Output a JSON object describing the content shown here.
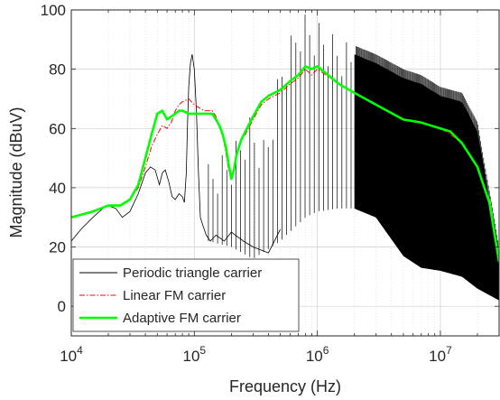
{
  "chart_data": {
    "type": "line",
    "title": "",
    "xlabel": "Frequency (Hz)",
    "ylabel": "Magnitude (dBuV)",
    "xscale": "log",
    "xlim": [
      10000,
      30000000
    ],
    "ylim": [
      -10,
      100
    ],
    "grid": true,
    "x_ticks": [
      {
        "value": 10000,
        "base": "10",
        "exp": "4"
      },
      {
        "value": 100000,
        "base": "10",
        "exp": "5"
      },
      {
        "value": 1000000,
        "base": "10",
        "exp": "6"
      },
      {
        "value": 10000000,
        "base": "10",
        "exp": "7"
      }
    ],
    "y_ticks": [
      0,
      20,
      40,
      60,
      80,
      100
    ],
    "legend_position": "bottom-left",
    "series": [
      {
        "name": "Periodic triangle carrier",
        "color": "#000000",
        "style": "solid",
        "x": [
          10000,
          12000,
          15000,
          18000,
          20000,
          23000,
          26000,
          30000,
          35000,
          40000,
          44000,
          48000,
          52000,
          55000,
          58000,
          62000,
          66000,
          70000,
          75000,
          80000,
          83000,
          86000,
          88000,
          90000,
          93000,
          96000,
          100000,
          104000,
          108000,
          112000,
          118000,
          125000,
          135000,
          150000,
          175000,
          200000,
          250000,
          300000,
          400000,
          500000
        ],
        "y": [
          22,
          26,
          30,
          33,
          34,
          33,
          30,
          32,
          38,
          45,
          47,
          46,
          41,
          45,
          46,
          42,
          37,
          36,
          38,
          37,
          35,
          45,
          62,
          74,
          82,
          85,
          80,
          66,
          45,
          30,
          27,
          24,
          22,
          24,
          22,
          25,
          22,
          20,
          18,
          26
        ],
        "spur_start_hz": 130000,
        "spur_top_envelope": {
          "x": [
            130000,
            200000,
            280000,
            380000,
            500000,
            650000,
            750000,
            1000000,
            1500000,
            2000000,
            3000000,
            5000000,
            7000000,
            10000000,
            15000000,
            20000000,
            30000000
          ],
          "y": [
            48,
            53,
            64,
            55,
            82,
            94,
            99,
            96,
            90,
            88,
            85,
            80,
            78,
            74,
            72,
            62,
            20
          ]
        },
        "spur_floor": {
          "x": [
            130000,
            200000,
            300000,
            500000,
            800000,
            1000000,
            1500000,
            2000000,
            3000000,
            5000000,
            7000000,
            10000000,
            15000000,
            20000000,
            30000000
          ],
          "y": [
            22,
            20,
            16,
            22,
            30,
            32,
            33,
            33,
            30,
            17,
            13,
            12,
            10,
            6,
            2
          ]
        },
        "spur_fill_from_hz": 2000000
      },
      {
        "name": "Linear FM carrier",
        "color": "#ff0000",
        "style": "dashdot",
        "x": [
          10000,
          15000,
          20000,
          25000,
          30000,
          35000,
          40000,
          45000,
          50000,
          55000,
          60000,
          65000,
          70000,
          75000,
          80000,
          90000,
          100000,
          120000,
          140000,
          150000,
          160000,
          170000,
          180000,
          190000,
          200000,
          210000,
          220000,
          240000,
          260000,
          300000,
          350000,
          400000,
          500000,
          600000,
          700000,
          800000,
          900000,
          1000000,
          1500000,
          2000000,
          3000000,
          5000000,
          7000000,
          10000000,
          12000000,
          15000000,
          20000000,
          25000000,
          30000000
        ],
        "y": [
          30,
          32,
          34,
          34,
          36,
          40,
          47,
          54,
          58,
          61,
          60,
          62,
          66,
          68,
          69,
          70,
          68,
          66,
          66,
          64,
          61,
          58,
          52,
          46,
          43,
          46,
          51,
          56,
          58,
          63,
          68,
          70,
          72,
          75,
          77,
          80,
          78,
          80,
          75,
          72,
          68,
          63,
          62,
          60,
          58,
          55,
          47,
          35,
          14
        ]
      },
      {
        "name": "Adaptive FM carrier",
        "color": "#00ff00",
        "style": "solid",
        "x": [
          10000,
          15000,
          20000,
          25000,
          30000,
          35000,
          40000,
          45000,
          50000,
          55000,
          60000,
          65000,
          70000,
          75000,
          80000,
          90000,
          100000,
          120000,
          140000,
          150000,
          160000,
          170000,
          180000,
          190000,
          200000,
          210000,
          220000,
          240000,
          260000,
          300000,
          350000,
          400000,
          500000,
          600000,
          700000,
          800000,
          900000,
          1000000,
          1500000,
          2000000,
          3000000,
          5000000,
          7000000,
          10000000,
          12000000,
          15000000,
          20000000,
          25000000,
          30000000
        ],
        "y": [
          30,
          32,
          34,
          34,
          36,
          41,
          50,
          58,
          65,
          66,
          63,
          64,
          65,
          66,
          66,
          65,
          65,
          65,
          65,
          63,
          61,
          58,
          54,
          48,
          43,
          46,
          51,
          56,
          59,
          64,
          69,
          71,
          73,
          76,
          78,
          81,
          80,
          81,
          75,
          72,
          68,
          63,
          62,
          60,
          59,
          55,
          47,
          35,
          15
        ]
      }
    ]
  }
}
